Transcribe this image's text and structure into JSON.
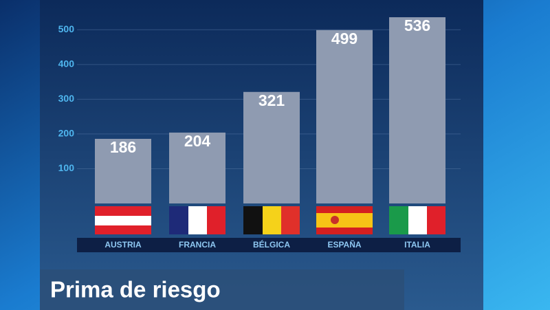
{
  "chart_data": {
    "type": "bar",
    "title": "Prima de riesgo",
    "categories": [
      "AUSTRIA",
      "FRANCIA",
      "BÉLGICA",
      "ESPAÑA",
      "ITALIA"
    ],
    "values": [
      186,
      204,
      321,
      499,
      536
    ],
    "color": "#8f9bb1",
    "ylim": [
      0,
      550
    ],
    "yticks": [
      100,
      200,
      300,
      400,
      500
    ],
    "grid": true
  }
}
